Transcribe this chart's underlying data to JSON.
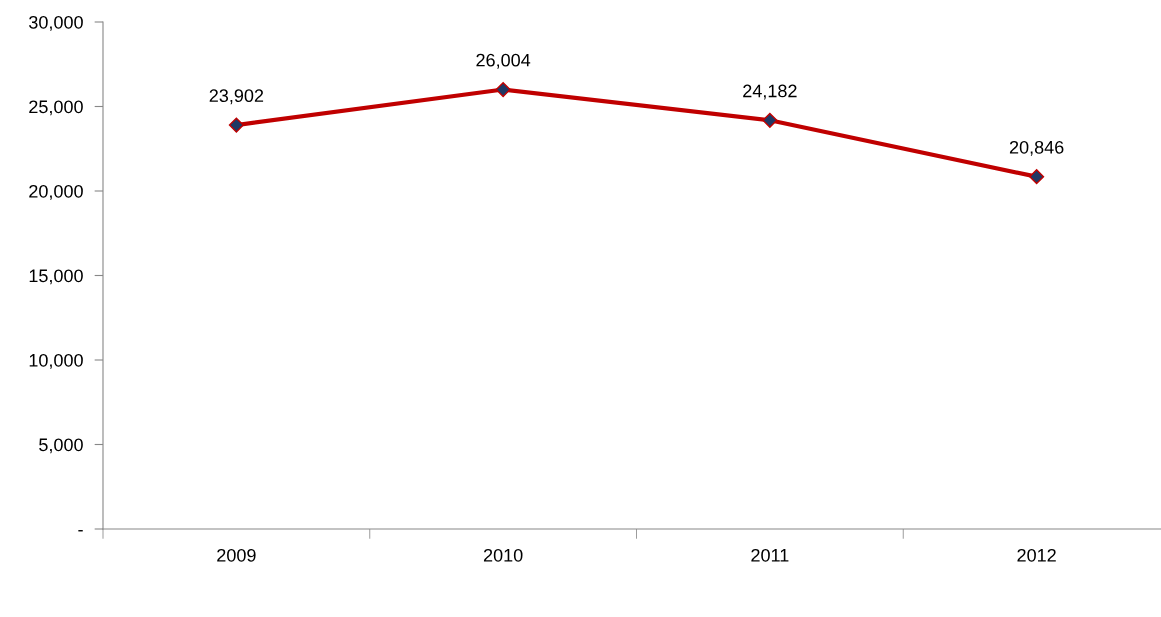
{
  "chart_data": {
    "type": "line",
    "categories": [
      "2009",
      "2010",
      "2011",
      "2012"
    ],
    "series": [
      {
        "color": "#c00000",
        "values": [
          23902,
          26004,
          24182,
          20846
        ]
      }
    ],
    "marker": "diamond",
    "ylim": [
      0,
      30000
    ],
    "yticks": [
      {
        "value": 0,
        "label": "-"
      },
      {
        "value": 5000,
        "label": "5,000"
      },
      {
        "value": 10000,
        "label": "10,000"
      },
      {
        "value": 15000,
        "label": "15,000"
      },
      {
        "value": 20000,
        "label": "20,000"
      },
      {
        "value": 25000,
        "label": "25,000"
      },
      {
        "value": 30000,
        "label": "30,000"
      }
    ],
    "value_labels": [
      "23,902",
      "26,004",
      "24,182",
      "20,846"
    ],
    "grid": false
  }
}
